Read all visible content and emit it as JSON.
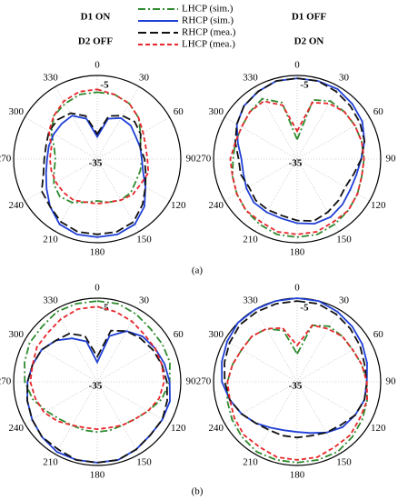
{
  "column_labels": [
    [
      "D1 ON",
      "D2 OFF"
    ],
    [
      "D1 OFF",
      "D2 ON"
    ]
  ],
  "panel_labels": [
    "(a)",
    "(b)"
  ],
  "chart_data": [
    {
      "type": "polar",
      "theta": [
        0,
        15,
        30,
        45,
        60,
        75,
        90,
        105,
        120,
        135,
        150,
        165,
        180,
        195,
        210,
        225,
        240,
        255,
        270,
        285,
        300,
        315,
        330,
        345
      ],
      "thetaticks": [
        0,
        30,
        60,
        90,
        120,
        150,
        180,
        210,
        240,
        270,
        300,
        330
      ],
      "rlim": [
        -35,
        -5
      ],
      "rticks": [
        -35,
        -5
      ],
      "series": [
        {
          "name": "LHCP (sim.)",
          "color": "#2e8b2e",
          "dash": "dashdot",
          "values": [
            -11,
            -11,
            -12,
            -14,
            -17,
            -19,
            -19,
            -19,
            -19,
            -18,
            -18,
            -19,
            -20,
            -19,
            -17,
            -16,
            -17,
            -19,
            -20,
            -19,
            -16,
            -13,
            -12,
            -11
          ]
        },
        {
          "name": "RHCP (sim.)",
          "color": "#1f3fd6",
          "dash": "solid",
          "values": [
            -27,
            -20,
            -18,
            -18,
            -19,
            -19,
            -19,
            -18,
            -15,
            -11,
            -8,
            -7,
            -7,
            -7,
            -8,
            -11,
            -14,
            -16,
            -17,
            -17,
            -17,
            -17,
            -17,
            -20
          ]
        },
        {
          "name": "RHCP (mea.)",
          "color": "#111111",
          "dash": "dashed",
          "values": [
            -26,
            -19,
            -17,
            -16,
            -17,
            -19,
            -18,
            -17,
            -15,
            -12,
            -9,
            -8,
            -8,
            -8,
            -9,
            -11,
            -12,
            -15,
            -16,
            -16,
            -15,
            -15,
            -16,
            -19
          ]
        },
        {
          "name": "LHCP (mea.)",
          "color": "#e8262b",
          "dash": "shortdash",
          "values": [
            -10,
            -11,
            -12,
            -14,
            -16,
            -17,
            -17,
            -16,
            -17,
            -17,
            -18,
            -19,
            -19,
            -19,
            -18,
            -18,
            -18,
            -18,
            -18,
            -18,
            -15,
            -13,
            -11,
            -10
          ]
        }
      ]
    },
    {
      "type": "polar",
      "theta": [
        0,
        15,
        30,
        45,
        60,
        75,
        90,
        105,
        120,
        135,
        150,
        165,
        180,
        195,
        210,
        225,
        240,
        255,
        270,
        285,
        300,
        315,
        330,
        345
      ],
      "thetaticks": [
        0,
        30,
        60,
        90,
        120,
        150,
        180,
        210,
        240,
        270,
        300,
        330
      ],
      "rlim": [
        -35,
        -5
      ],
      "rticks": [
        -35,
        -5
      ],
      "series": [
        {
          "values": [
            -28,
            -13,
            -11,
            -11,
            -11,
            -11,
            -11,
            -11,
            -10,
            -9,
            -8,
            -7,
            -7,
            -7,
            -8,
            -9,
            -10,
            -11,
            -12,
            -12,
            -12,
            -11,
            -10,
            -14
          ]
        },
        {
          "values": [
            -6,
            -6,
            -6,
            -7,
            -8,
            -10,
            -12,
            -13,
            -13,
            -12,
            -11,
            -11,
            -12,
            -13,
            -13,
            -13,
            -14,
            -15,
            -15,
            -13,
            -10,
            -8,
            -7,
            -6
          ]
        },
        {
          "values": [
            -6,
            -6,
            -7,
            -8,
            -9,
            -10,
            -12,
            -14,
            -15,
            -14,
            -13,
            -12,
            -13,
            -14,
            -14,
            -14,
            -15,
            -14,
            -14,
            -12,
            -10,
            -8,
            -7,
            -6
          ]
        },
        {
          "values": [
            -25,
            -14,
            -12,
            -11,
            -11,
            -11,
            -11,
            -11,
            -10,
            -9,
            -9,
            -8,
            -8,
            -8,
            -9,
            -9,
            -10,
            -11,
            -11,
            -12,
            -12,
            -11,
            -11,
            -15
          ]
        }
      ]
    },
    {
      "type": "polar",
      "theta": [
        0,
        15,
        30,
        45,
        60,
        75,
        90,
        105,
        120,
        135,
        150,
        165,
        180,
        195,
        210,
        225,
        240,
        255,
        270,
        285,
        300,
        315,
        330,
        345
      ],
      "thetaticks": [
        0,
        30,
        60,
        90,
        120,
        150,
        180,
        210,
        240,
        270,
        300,
        330
      ],
      "rlim": [
        -35,
        -5
      ],
      "rticks": [
        -35,
        -5
      ],
      "series": [
        {
          "values": [
            -6,
            -6,
            -7,
            -8,
            -8,
            -8,
            -9,
            -11,
            -14,
            -16,
            -17,
            -17,
            -17,
            -17,
            -17,
            -16,
            -14,
            -11,
            -9,
            -8,
            -7,
            -7,
            -6,
            -6
          ]
        },
        {
          "values": [
            -28,
            -18,
            -14,
            -12,
            -11,
            -10,
            -9,
            -8,
            -8,
            -8,
            -7,
            -6,
            -6,
            -6,
            -6,
            -7,
            -8,
            -9,
            -10,
            -11,
            -12,
            -14,
            -17,
            -20
          ]
        },
        {
          "values": [
            -26,
            -16,
            -14,
            -13,
            -12,
            -11,
            -10,
            -9,
            -8,
            -8,
            -7,
            -6,
            -6,
            -6,
            -7,
            -7,
            -8,
            -9,
            -10,
            -11,
            -12,
            -14,
            -15,
            -18
          ]
        },
        {
          "values": [
            -8,
            -9,
            -10,
            -11,
            -11,
            -11,
            -11,
            -12,
            -14,
            -16,
            -17,
            -18,
            -18,
            -18,
            -17,
            -15,
            -13,
            -12,
            -11,
            -11,
            -10,
            -10,
            -9,
            -8
          ]
        }
      ]
    },
    {
      "type": "polar",
      "theta": [
        0,
        15,
        30,
        45,
        60,
        75,
        90,
        105,
        120,
        135,
        150,
        165,
        180,
        195,
        210,
        225,
        240,
        255,
        270,
        285,
        300,
        315,
        330,
        345
      ],
      "thetaticks": [
        0,
        30,
        60,
        90,
        120,
        150,
        180,
        210,
        240,
        270,
        300,
        330
      ],
      "rlim": [
        -35,
        -5
      ],
      "rticks": [
        -35,
        -5
      ],
      "series": [
        {
          "values": [
            -25,
            -14,
            -12,
            -12,
            -12,
            -11,
            -10,
            -9,
            -8,
            -7,
            -6,
            -6,
            -6,
            -6,
            -6,
            -7,
            -8,
            -9,
            -10,
            -11,
            -12,
            -12,
            -13,
            -16
          ]
        },
        {
          "values": [
            -5,
            -5,
            -6,
            -7,
            -8,
            -9,
            -10,
            -10,
            -11,
            -12,
            -14,
            -16,
            -17,
            -17,
            -16,
            -14,
            -12,
            -10,
            -8,
            -7,
            -6,
            -5,
            -5,
            -5
          ]
        },
        {
          "values": [
            -6,
            -6,
            -7,
            -8,
            -9,
            -10,
            -10,
            -10,
            -11,
            -13,
            -14,
            -15,
            -15,
            -15,
            -15,
            -14,
            -12,
            -10,
            -9,
            -8,
            -7,
            -6,
            -6,
            -6
          ]
        },
        {
          "values": [
            -22,
            -14,
            -13,
            -12,
            -12,
            -11,
            -10,
            -9,
            -9,
            -8,
            -8,
            -7,
            -7,
            -7,
            -8,
            -8,
            -9,
            -10,
            -10,
            -11,
            -12,
            -12,
            -13,
            -15
          ]
        }
      ]
    }
  ]
}
